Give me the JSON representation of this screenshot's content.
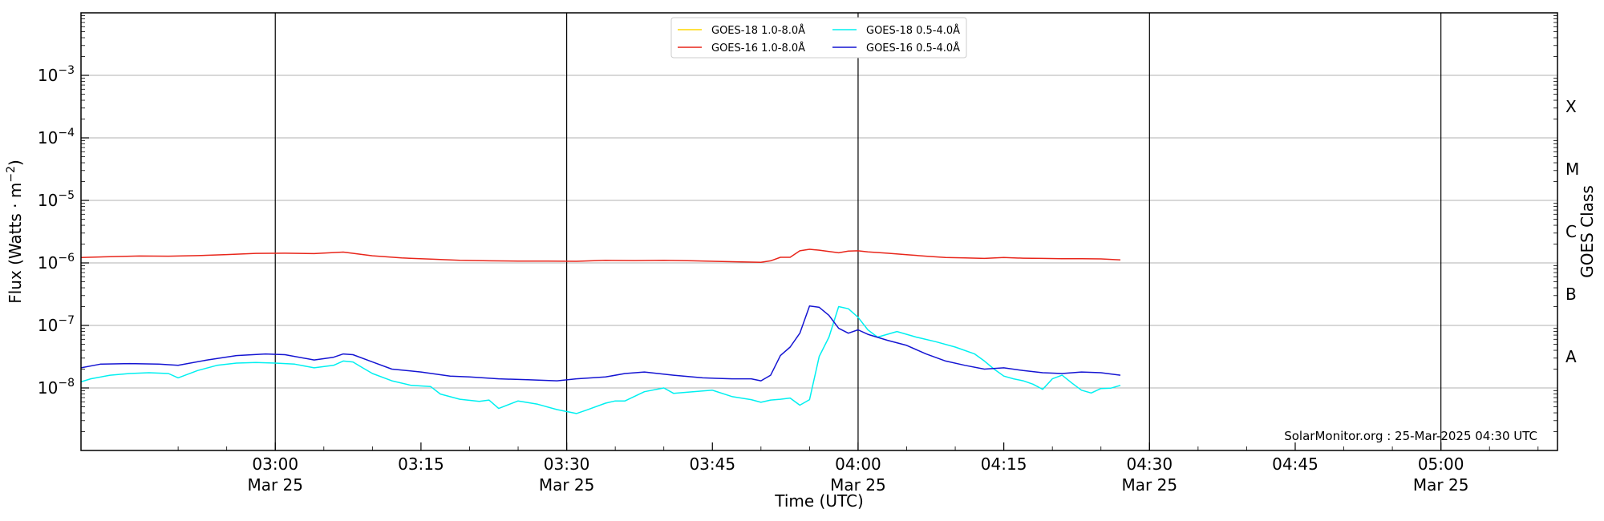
{
  "chart_data": {
    "type": "line",
    "title": "",
    "xlabel": "Time (UTC)",
    "ylabel": "Flux (Watts · m⁻²)",
    "ylabel_right": "GOES Class",
    "y_scale": "log",
    "ylim": [
      1e-09,
      0.01
    ],
    "xlim": [
      "02:40",
      "05:12"
    ],
    "grid": "horizontal at each decade; vertical lines at 30-minute ticks",
    "legend_position": "top-center",
    "credit": "SolarMonitor.org : 25-Mar-2025 04:30 UTC",
    "y_ticks": [
      {
        "value": 1e-08,
        "base": "10",
        "exp": "−8"
      },
      {
        "value": 1e-07,
        "base": "10",
        "exp": "−7"
      },
      {
        "value": 1e-06,
        "base": "10",
        "exp": "−6"
      },
      {
        "value": 1e-05,
        "base": "10",
        "exp": "−5"
      },
      {
        "value": 0.0001,
        "base": "10",
        "exp": "−4"
      },
      {
        "value": 0.001,
        "base": "10",
        "exp": "−3"
      }
    ],
    "x_ticks": [
      {
        "time": "03:00",
        "label": "03:00",
        "date": "Mar 25",
        "major": true
      },
      {
        "time": "03:15",
        "label": "03:15",
        "date": "",
        "major": false
      },
      {
        "time": "03:30",
        "label": "03:30",
        "date": "Mar 25",
        "major": true
      },
      {
        "time": "03:45",
        "label": "03:45",
        "date": "",
        "major": false
      },
      {
        "time": "04:00",
        "label": "04:00",
        "date": "Mar 25",
        "major": true
      },
      {
        "time": "04:15",
        "label": "04:15",
        "date": "",
        "major": false
      },
      {
        "time": "04:30",
        "label": "04:30",
        "date": "Mar 25",
        "major": true
      },
      {
        "time": "04:45",
        "label": "04:45",
        "date": "",
        "major": false
      },
      {
        "time": "05:00",
        "label": "05:00",
        "date": "Mar 25",
        "major": true
      }
    ],
    "goes_classes": [
      {
        "label": "A",
        "value": 3.16e-08
      },
      {
        "label": "B",
        "value": 3.16e-07
      },
      {
        "label": "C",
        "value": 3.16e-06
      },
      {
        "label": "M",
        "value": 3.16e-05
      },
      {
        "label": "X",
        "value": 0.000316
      }
    ],
    "series": [
      {
        "name": "GOES-18 1.0-8.0Å",
        "color": "#ffd700",
        "x": [],
        "y": []
      },
      {
        "name": "GOES-16 1.0-8.0Å",
        "color": "#e8251a",
        "x": [
          "02:40",
          "02:43",
          "02:46",
          "02:49",
          "02:52",
          "02:55",
          "02:58",
          "03:01",
          "03:04",
          "03:07",
          "03:10",
          "03:13",
          "03:16",
          "03:19",
          "03:22",
          "03:25",
          "03:28",
          "03:31",
          "03:34",
          "03:37",
          "03:40",
          "03:43",
          "03:46",
          "03:49",
          "03:50",
          "03:51",
          "03:52",
          "03:53",
          "03:54",
          "03:55",
          "03:56",
          "03:57",
          "03:58",
          "03:59",
          "04:00",
          "04:01",
          "04:03",
          "04:05",
          "04:07",
          "04:09",
          "04:11",
          "04:13",
          "04:15",
          "04:17",
          "04:19",
          "04:21",
          "04:23",
          "04:25",
          "04:27"
        ],
        "y": [
          1.22e-06,
          1.26e-06,
          1.29e-06,
          1.28e-06,
          1.31e-06,
          1.36e-06,
          1.42e-06,
          1.43e-06,
          1.41e-06,
          1.49e-06,
          1.3e-06,
          1.2e-06,
          1.15e-06,
          1.1e-06,
          1.08e-06,
          1.07e-06,
          1.07e-06,
          1.06e-06,
          1.1e-06,
          1.09e-06,
          1.1e-06,
          1.08e-06,
          1.05e-06,
          1.03e-06,
          1.02e-06,
          1.08e-06,
          1.23e-06,
          1.23e-06,
          1.56e-06,
          1.65e-06,
          1.6e-06,
          1.52e-06,
          1.45e-06,
          1.55e-06,
          1.56e-06,
          1.5e-06,
          1.43e-06,
          1.35e-06,
          1.28e-06,
          1.22e-06,
          1.2e-06,
          1.18e-06,
          1.22e-06,
          1.19e-06,
          1.18e-06,
          1.17e-06,
          1.17e-06,
          1.16e-06,
          1.12e-06
        ]
      },
      {
        "name": "GOES-18 0.5-4.0Å",
        "color": "#00f0f0",
        "x": [
          "02:40",
          "02:41",
          "02:43",
          "02:45",
          "02:47",
          "02:49",
          "02:50",
          "02:52",
          "02:54",
          "02:56",
          "02:58",
          "03:00",
          "03:02",
          "03:04",
          "03:06",
          "03:07",
          "03:08",
          "03:09",
          "03:10",
          "03:12",
          "03:14",
          "03:16",
          "03:17",
          "03:19",
          "03:21",
          "03:22",
          "03:23",
          "03:25",
          "03:27",
          "03:29",
          "03:31",
          "03:32",
          "03:34",
          "03:35",
          "03:36",
          "03:38",
          "03:40",
          "03:41",
          "03:43",
          "03:45",
          "03:47",
          "03:49",
          "03:50",
          "03:51",
          "03:52",
          "03:53",
          "03:54",
          "03:55",
          "03:56",
          "03:57",
          "03:58",
          "03:59",
          "04:00",
          "04:01",
          "04:02",
          "04:04",
          "04:06",
          "04:08",
          "04:10",
          "04:12",
          "04:13",
          "04:14",
          "04:15",
          "04:16",
          "04:17",
          "04:18",
          "04:19",
          "04:20",
          "04:21",
          "04:22",
          "04:23",
          "04:24",
          "04:25",
          "04:26",
          "04:27"
        ],
        "y": [
          1.25e-08,
          1.4e-08,
          1.6e-08,
          1.7e-08,
          1.75e-08,
          1.7e-08,
          1.45e-08,
          1.9e-08,
          2.3e-08,
          2.5e-08,
          2.55e-08,
          2.5e-08,
          2.4e-08,
          2.1e-08,
          2.3e-08,
          2.7e-08,
          2.6e-08,
          2.1e-08,
          1.7e-08,
          1.3e-08,
          1.1e-08,
          1.05e-08,
          8e-09,
          6.6e-09,
          6.1e-09,
          6.4e-09,
          4.7e-09,
          6.2e-09,
          5.5e-09,
          4.5e-09,
          3.9e-09,
          4.4e-09,
          5.7e-09,
          6.2e-09,
          6.2e-09,
          8.7e-09,
          1e-08,
          8.2e-09,
          8.7e-09,
          9.2e-09,
          7.3e-09,
          6.5e-09,
          5.9e-09,
          6.4e-09,
          6.6e-09,
          6.9e-09,
          5.3e-09,
          6.5e-09,
          3.2e-08,
          6.5e-08,
          2e-07,
          1.85e-07,
          1.35e-07,
          8.5e-08,
          6.5e-08,
          8e-08,
          6.5e-08,
          5.5e-08,
          4.5e-08,
          3.5e-08,
          2.7e-08,
          2e-08,
          1.55e-08,
          1.4e-08,
          1.3e-08,
          1.15e-08,
          9.5e-09,
          1.4e-08,
          1.6e-08,
          1.2e-08,
          9.2e-09,
          8.3e-09,
          9.8e-09,
          9.9e-09,
          1.1e-08
        ]
      },
      {
        "name": "GOES-16 0.5-4.0Å",
        "color": "#1414d2",
        "x": [
          "02:40",
          "02:42",
          "02:45",
          "02:48",
          "02:50",
          "02:53",
          "02:56",
          "02:59",
          "03:01",
          "03:04",
          "03:06",
          "03:07",
          "03:08",
          "03:10",
          "03:12",
          "03:15",
          "03:18",
          "03:20",
          "03:23",
          "03:26",
          "03:29",
          "03:31",
          "03:34",
          "03:36",
          "03:38",
          "03:41",
          "03:44",
          "03:47",
          "03:49",
          "03:50",
          "03:51",
          "03:52",
          "03:53",
          "03:54",
          "03:55",
          "03:56",
          "03:57",
          "03:58",
          "03:59",
          "04:00",
          "04:01",
          "04:03",
          "04:05",
          "04:07",
          "04:09",
          "04:11",
          "04:13",
          "04:15",
          "04:17",
          "04:19",
          "04:21",
          "04:23",
          "04:25",
          "04:27"
        ],
        "y": [
          2.1e-08,
          2.4e-08,
          2.45e-08,
          2.4e-08,
          2.3e-08,
          2.8e-08,
          3.3e-08,
          3.5e-08,
          3.4e-08,
          2.8e-08,
          3.1e-08,
          3.5e-08,
          3.4e-08,
          2.6e-08,
          2e-08,
          1.8e-08,
          1.55e-08,
          1.5e-08,
          1.4e-08,
          1.35e-08,
          1.3e-08,
          1.4e-08,
          1.5e-08,
          1.7e-08,
          1.8e-08,
          1.6e-08,
          1.45e-08,
          1.4e-08,
          1.4e-08,
          1.3e-08,
          1.6e-08,
          3.3e-08,
          4.5e-08,
          7.5e-08,
          2.05e-07,
          1.95e-07,
          1.45e-07,
          9e-08,
          7.5e-08,
          8.5e-08,
          7.2e-08,
          5.8e-08,
          4.8e-08,
          3.5e-08,
          2.7e-08,
          2.3e-08,
          2e-08,
          2.1e-08,
          1.9e-08,
          1.75e-08,
          1.7e-08,
          1.8e-08,
          1.75e-08,
          1.6e-08
        ]
      }
    ]
  }
}
